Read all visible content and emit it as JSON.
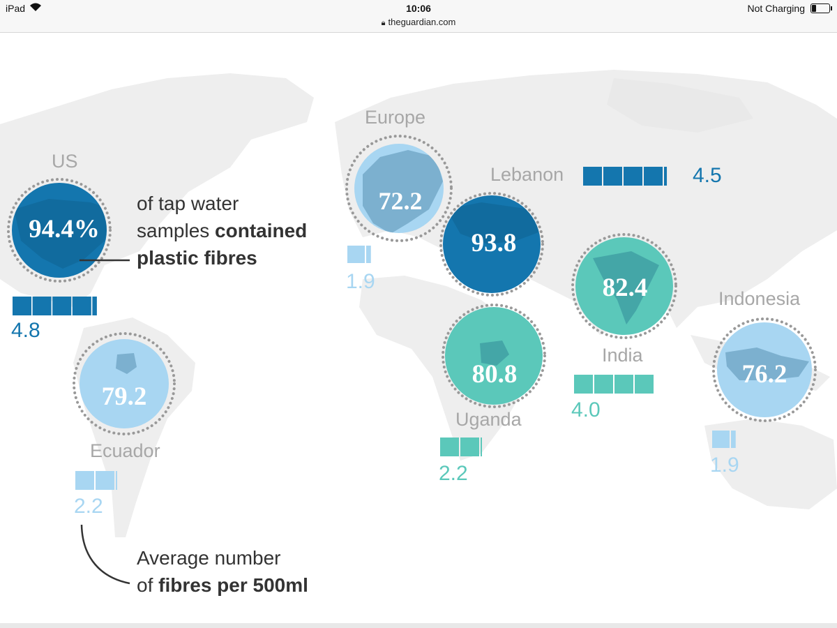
{
  "status_bar": {
    "device": "iPad",
    "time": "10:06",
    "url": "theguardian.com",
    "charging": "Not Charging"
  },
  "colors": {
    "dark_blue": "#1476ae",
    "light_blue": "#a8d6f2",
    "teal": "#5bc8ba",
    "label_gray": "#a7a7a7",
    "text_dark": "#333333",
    "map_gray": "#eeeeee"
  },
  "chart_data": {
    "type": "bubble-map",
    "annotations": {
      "percent_note": [
        "of tap water",
        "samples ",
        "contained",
        "plastic fibres"
      ],
      "fibres_note": [
        "Average number",
        "of ",
        "fibres per 500ml"
      ]
    },
    "series": [
      {
        "name": "US",
        "percent_label": "94.4%",
        "percent": 94.4,
        "fibres_label": "4.8",
        "fibres": 4.8,
        "color_key": "dark_blue",
        "squares": 5
      },
      {
        "name": "Europe",
        "percent_label": "72.2",
        "percent": 72.2,
        "fibres_label": "1.9",
        "fibres": 1.9,
        "color_key": "light_blue",
        "squares": 2
      },
      {
        "name": "Lebanon",
        "percent_label": "93.8",
        "percent": 93.8,
        "fibres_label": "4.5",
        "fibres": 4.5,
        "color_key": "dark_blue",
        "squares": 5
      },
      {
        "name": "India",
        "percent_label": "82.4",
        "percent": 82.4,
        "fibres_label": "4.0",
        "fibres": 4.0,
        "color_key": "teal",
        "squares": 4
      },
      {
        "name": "Uganda",
        "percent_label": "80.8",
        "percent": 80.8,
        "fibres_label": "2.2",
        "fibres": 2.2,
        "color_key": "teal",
        "squares": 3
      },
      {
        "name": "Ecuador",
        "percent_label": "79.2",
        "percent": 79.2,
        "fibres_label": "2.2",
        "fibres": 2.2,
        "color_key": "light_blue",
        "squares": 3
      },
      {
        "name": "Indonesia",
        "percent_label": "76.2",
        "percent": 76.2,
        "fibres_label": "1.9",
        "fibres": 1.9,
        "color_key": "light_blue",
        "squares": 2
      }
    ]
  }
}
